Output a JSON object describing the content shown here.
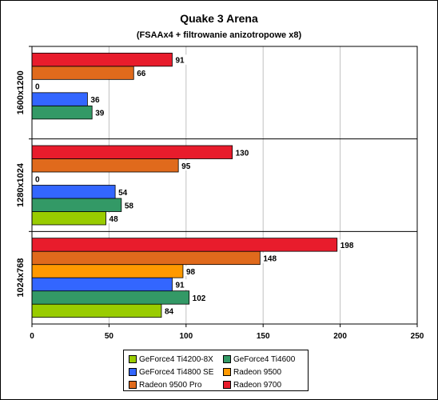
{
  "chart_data": {
    "type": "bar",
    "orientation": "horizontal",
    "title": "Quake 3 Arena",
    "subtitle": "(FSAAx4 + filtrowanie anizotropowe x8)",
    "xlabel": "",
    "ylabel": "",
    "xlim": [
      0,
      250
    ],
    "xticks": [
      0,
      50,
      100,
      150,
      200,
      250
    ],
    "grid": true,
    "legend_position": "bottom",
    "categories": [
      "1600x1200",
      "1280x1024",
      "1024x768"
    ],
    "series": [
      {
        "name": "GeForce4 Ti4200-8X",
        "color": "#99cc00",
        "values": [
          null,
          48,
          84
        ]
      },
      {
        "name": "GeForce4 Ti4600",
        "color": "#339966",
        "values": [
          39,
          58,
          102
        ]
      },
      {
        "name": "GeForce4 Ti4800 SE",
        "color": "#3366ff",
        "values": [
          36,
          54,
          91
        ]
      },
      {
        "name": "Radeon 9500",
        "color": "#ff9900",
        "values": [
          0,
          0,
          98
        ]
      },
      {
        "name": "Radeon 9500 Pro",
        "color": "#e06a1c",
        "values": [
          66,
          95,
          148
        ]
      },
      {
        "name": "Radeon 9700",
        "color": "#e81c2c",
        "values": [
          91,
          130,
          198
        ]
      }
    ]
  }
}
